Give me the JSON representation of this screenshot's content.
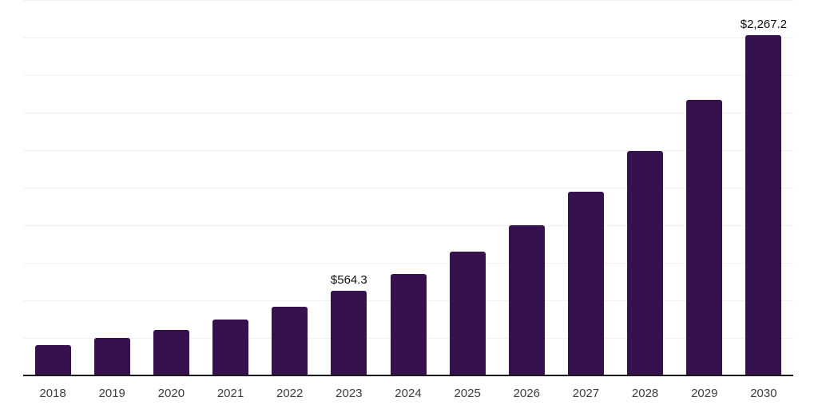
{
  "chart_data": {
    "type": "bar",
    "categories": [
      "2018",
      "2019",
      "2020",
      "2021",
      "2022",
      "2023",
      "2024",
      "2025",
      "2026",
      "2027",
      "2028",
      "2029",
      "2030"
    ],
    "values": [
      203,
      248,
      303,
      370,
      455,
      564.3,
      676,
      827,
      1001,
      1222,
      1496,
      1835,
      2267.2
    ],
    "data_labels": {
      "2023": "$564.3",
      "2030": "$2,267.2"
    },
    "title": "",
    "xlabel": "",
    "ylabel": "",
    "ylim": [
      0,
      2500
    ],
    "gridline_step": 250,
    "grid": "horizontal-only, no y-axis tick labels",
    "legend": "none",
    "bar_color": "#35124e",
    "gridline_color": "#f1f1f3",
    "axis_line_color": "#1a1a1a",
    "value_label_color": "#111111",
    "tick_label_color": "#3d3d3d",
    "background_color": "#ffffff"
  }
}
